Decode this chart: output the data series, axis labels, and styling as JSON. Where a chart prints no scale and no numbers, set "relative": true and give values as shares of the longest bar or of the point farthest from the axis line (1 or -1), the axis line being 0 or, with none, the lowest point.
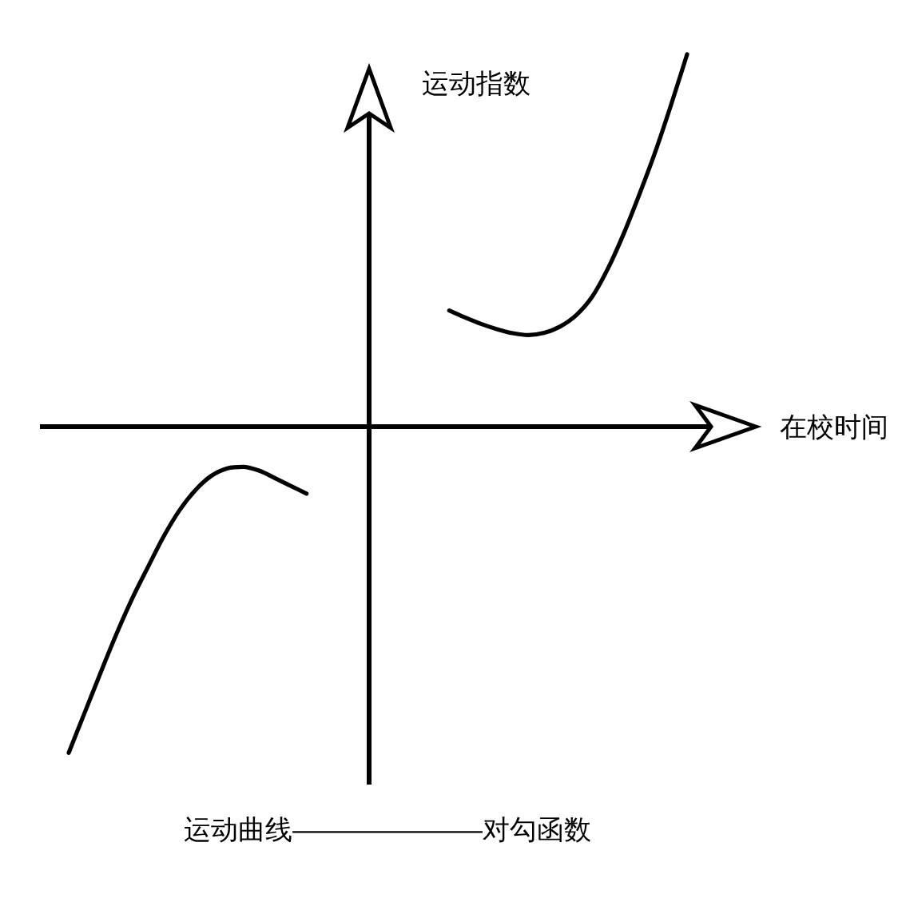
{
  "chart_data": {
    "type": "line",
    "xlabel": "在校时间",
    "ylabel": "运动指数",
    "annotations": [
      "运动曲线———————对勾函数"
    ],
    "relative": true,
    "categories": [
      null,
      null,
      null,
      null,
      null,
      null,
      null,
      null,
      null,
      null,
      null,
      null,
      null,
      null,
      null,
      null,
      null,
      null,
      null,
      null,
      null,
      null,
      null,
      null,
      null,
      null,
      null,
      null,
      null,
      null,
      null,
      null,
      null,
      null,
      null,
      null,
      null,
      null,
      null,
      null
    ],
    "series": [
      {
        "color": "#000000",
        "values": [
          -0.876,
          -0.769,
          -0.662,
          -0.558,
          -0.462,
          -0.377,
          -0.294,
          -0.224,
          -0.17,
          -0.132,
          -0.112,
          -0.108,
          -0.118,
          -0.138,
          -0.159,
          -0.18,
          null,
          null,
          null,
          null,
          null,
          null,
          null,
          null,
          null,
          null,
          null,
          null,
          null,
          null,
          null,
          null,
          null,
          null,
          null,
          null,
          null,
          null,
          null,
          null
        ]
      },
      {
        "color": "#000000",
        "values": [
          null,
          null,
          null,
          null,
          null,
          null,
          null,
          null,
          null,
          null,
          null,
          null,
          null,
          null,
          null,
          null,
          null,
          null,
          null,
          null,
          null,
          null,
          null,
          null,
          0.312,
          0.293,
          0.276,
          0.262,
          0.251,
          0.246,
          0.252,
          0.269,
          0.299,
          0.348,
          0.424,
          0.518,
          0.625,
          0.739,
          0.866,
          1
        ]
      }
    ]
  }
}
